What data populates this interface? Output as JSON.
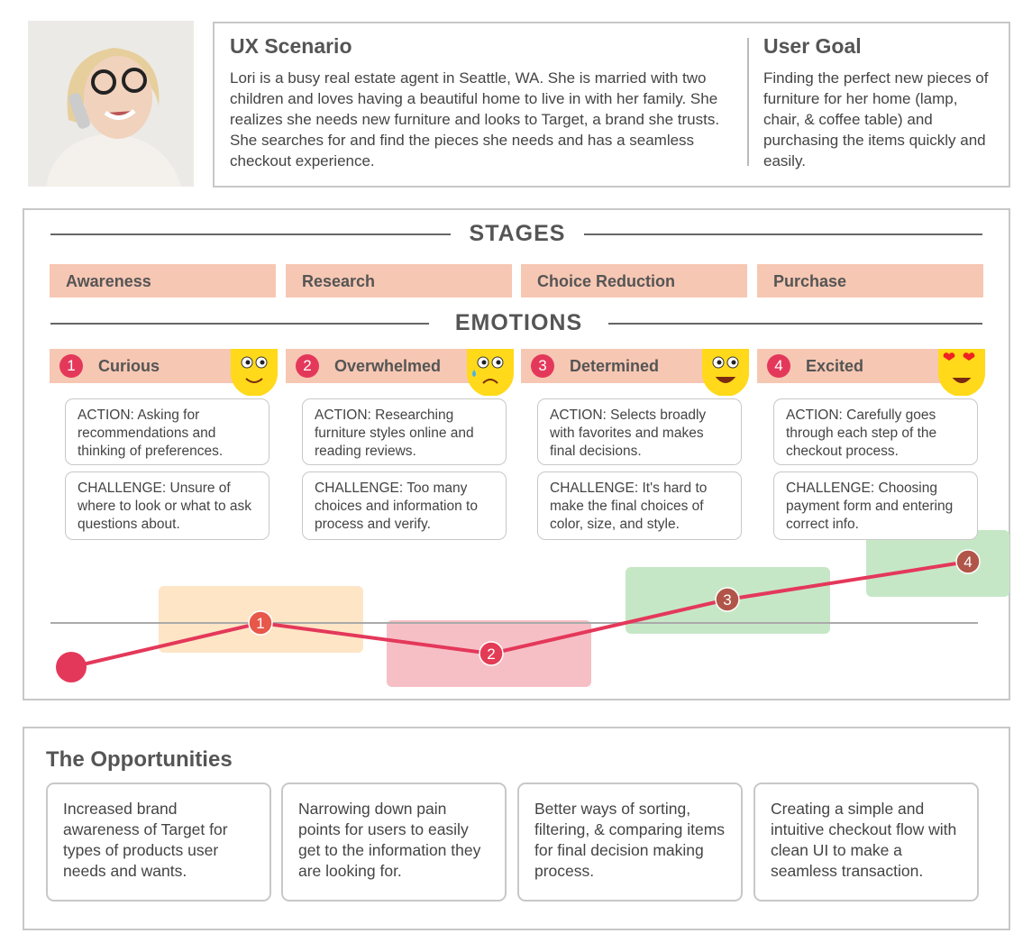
{
  "scenario": {
    "title": "UX Scenario",
    "text": "Lori is a busy real estate agent in Seattle, WA. She is married with two children and loves having a beautiful home to live in with her family. She realizes she needs new furniture and looks to Target, a brand she trusts. She searches for and find the pieces she needs and has a seamless checkout experience."
  },
  "goal": {
    "title": "User Goal",
    "text": "Finding the perfect new pieces of furniture for her home (lamp, chair, & coffee table) and purchasing the items quickly and easily."
  },
  "stages": {
    "title": "STAGES",
    "items": [
      "Awareness",
      "Research",
      "Choice Reduction",
      "Purchase"
    ]
  },
  "emotions": {
    "title": "EMOTIONS",
    "items": [
      {
        "number": 1,
        "label": "Curious",
        "action": "ACTION: Asking for recommendations and thinking of preferences.",
        "challenge": "CHALLENGE: Unsure of where to look or what to ask questions about."
      },
      {
        "number": 2,
        "label": "Overwhelmed",
        "action": "ACTION: Researching furniture styles online and reading reviews.",
        "challenge": "CHALLENGE: Too many choices and information to process and verify."
      },
      {
        "number": 3,
        "label": "Determined",
        "action": "ACTION: Selects broadly with favorites and makes final decisions.",
        "challenge": "CHALLENGE: It's hard to make the final choices of color, size, and style."
      },
      {
        "number": 4,
        "label": "Excited",
        "action": "ACTION: Carefully goes through each step of the checkout process.",
        "challenge": "CHALLENGE: Choosing payment form and entering correct info."
      }
    ]
  },
  "opportunities": {
    "title": "The Opportunities",
    "items": [
      "Increased brand awareness of Target for types of products user needs and wants.",
      "Narrowing down pain points for users to easily get to the information they are looking for.",
      "Better ways of sorting, filtering, & comparing items for final decision making process.",
      "Creating a simple and intuitive checkout flow with clean UI to make a seamless transaction."
    ]
  }
}
